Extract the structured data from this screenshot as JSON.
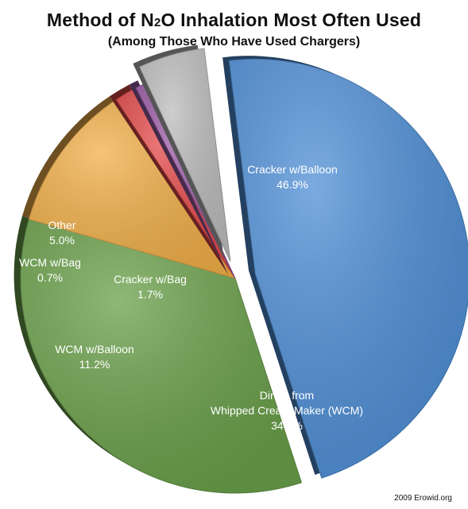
{
  "chart_data": {
    "type": "pie",
    "title_parts": [
      "Method of N",
      "2",
      "O Inhalation Most Often Used"
    ],
    "subtitle": "(Among Those Who Have Used Chargers)",
    "slices": [
      {
        "label": "Cracker w/Balloon",
        "value": 46.9,
        "display": "46.9%",
        "color": "#4f8fd6"
      },
      {
        "label": "Direct from Whipped Cream Maker (WCM)",
        "label_lines": [
          "Direct from",
          "Whipped Cream Maker (WCM)"
        ],
        "value": 34.4,
        "display": "34.4%",
        "color": "#6aa04a"
      },
      {
        "label": "WCM w/Balloon",
        "value": 11.2,
        "display": "11.2%",
        "color": "#f2b04a"
      },
      {
        "label": "Cracker w/Bag",
        "value": 1.7,
        "display": "1.7%",
        "color": "#e34848"
      },
      {
        "label": "WCM w/Bag",
        "value": 0.7,
        "display": "0.7%",
        "color": "#9a5aa6"
      },
      {
        "label": "Other",
        "value": 5.0,
        "display": "5.0%",
        "color": "#bdbdbd"
      }
    ]
  },
  "credit": "2009 Erowid.org"
}
